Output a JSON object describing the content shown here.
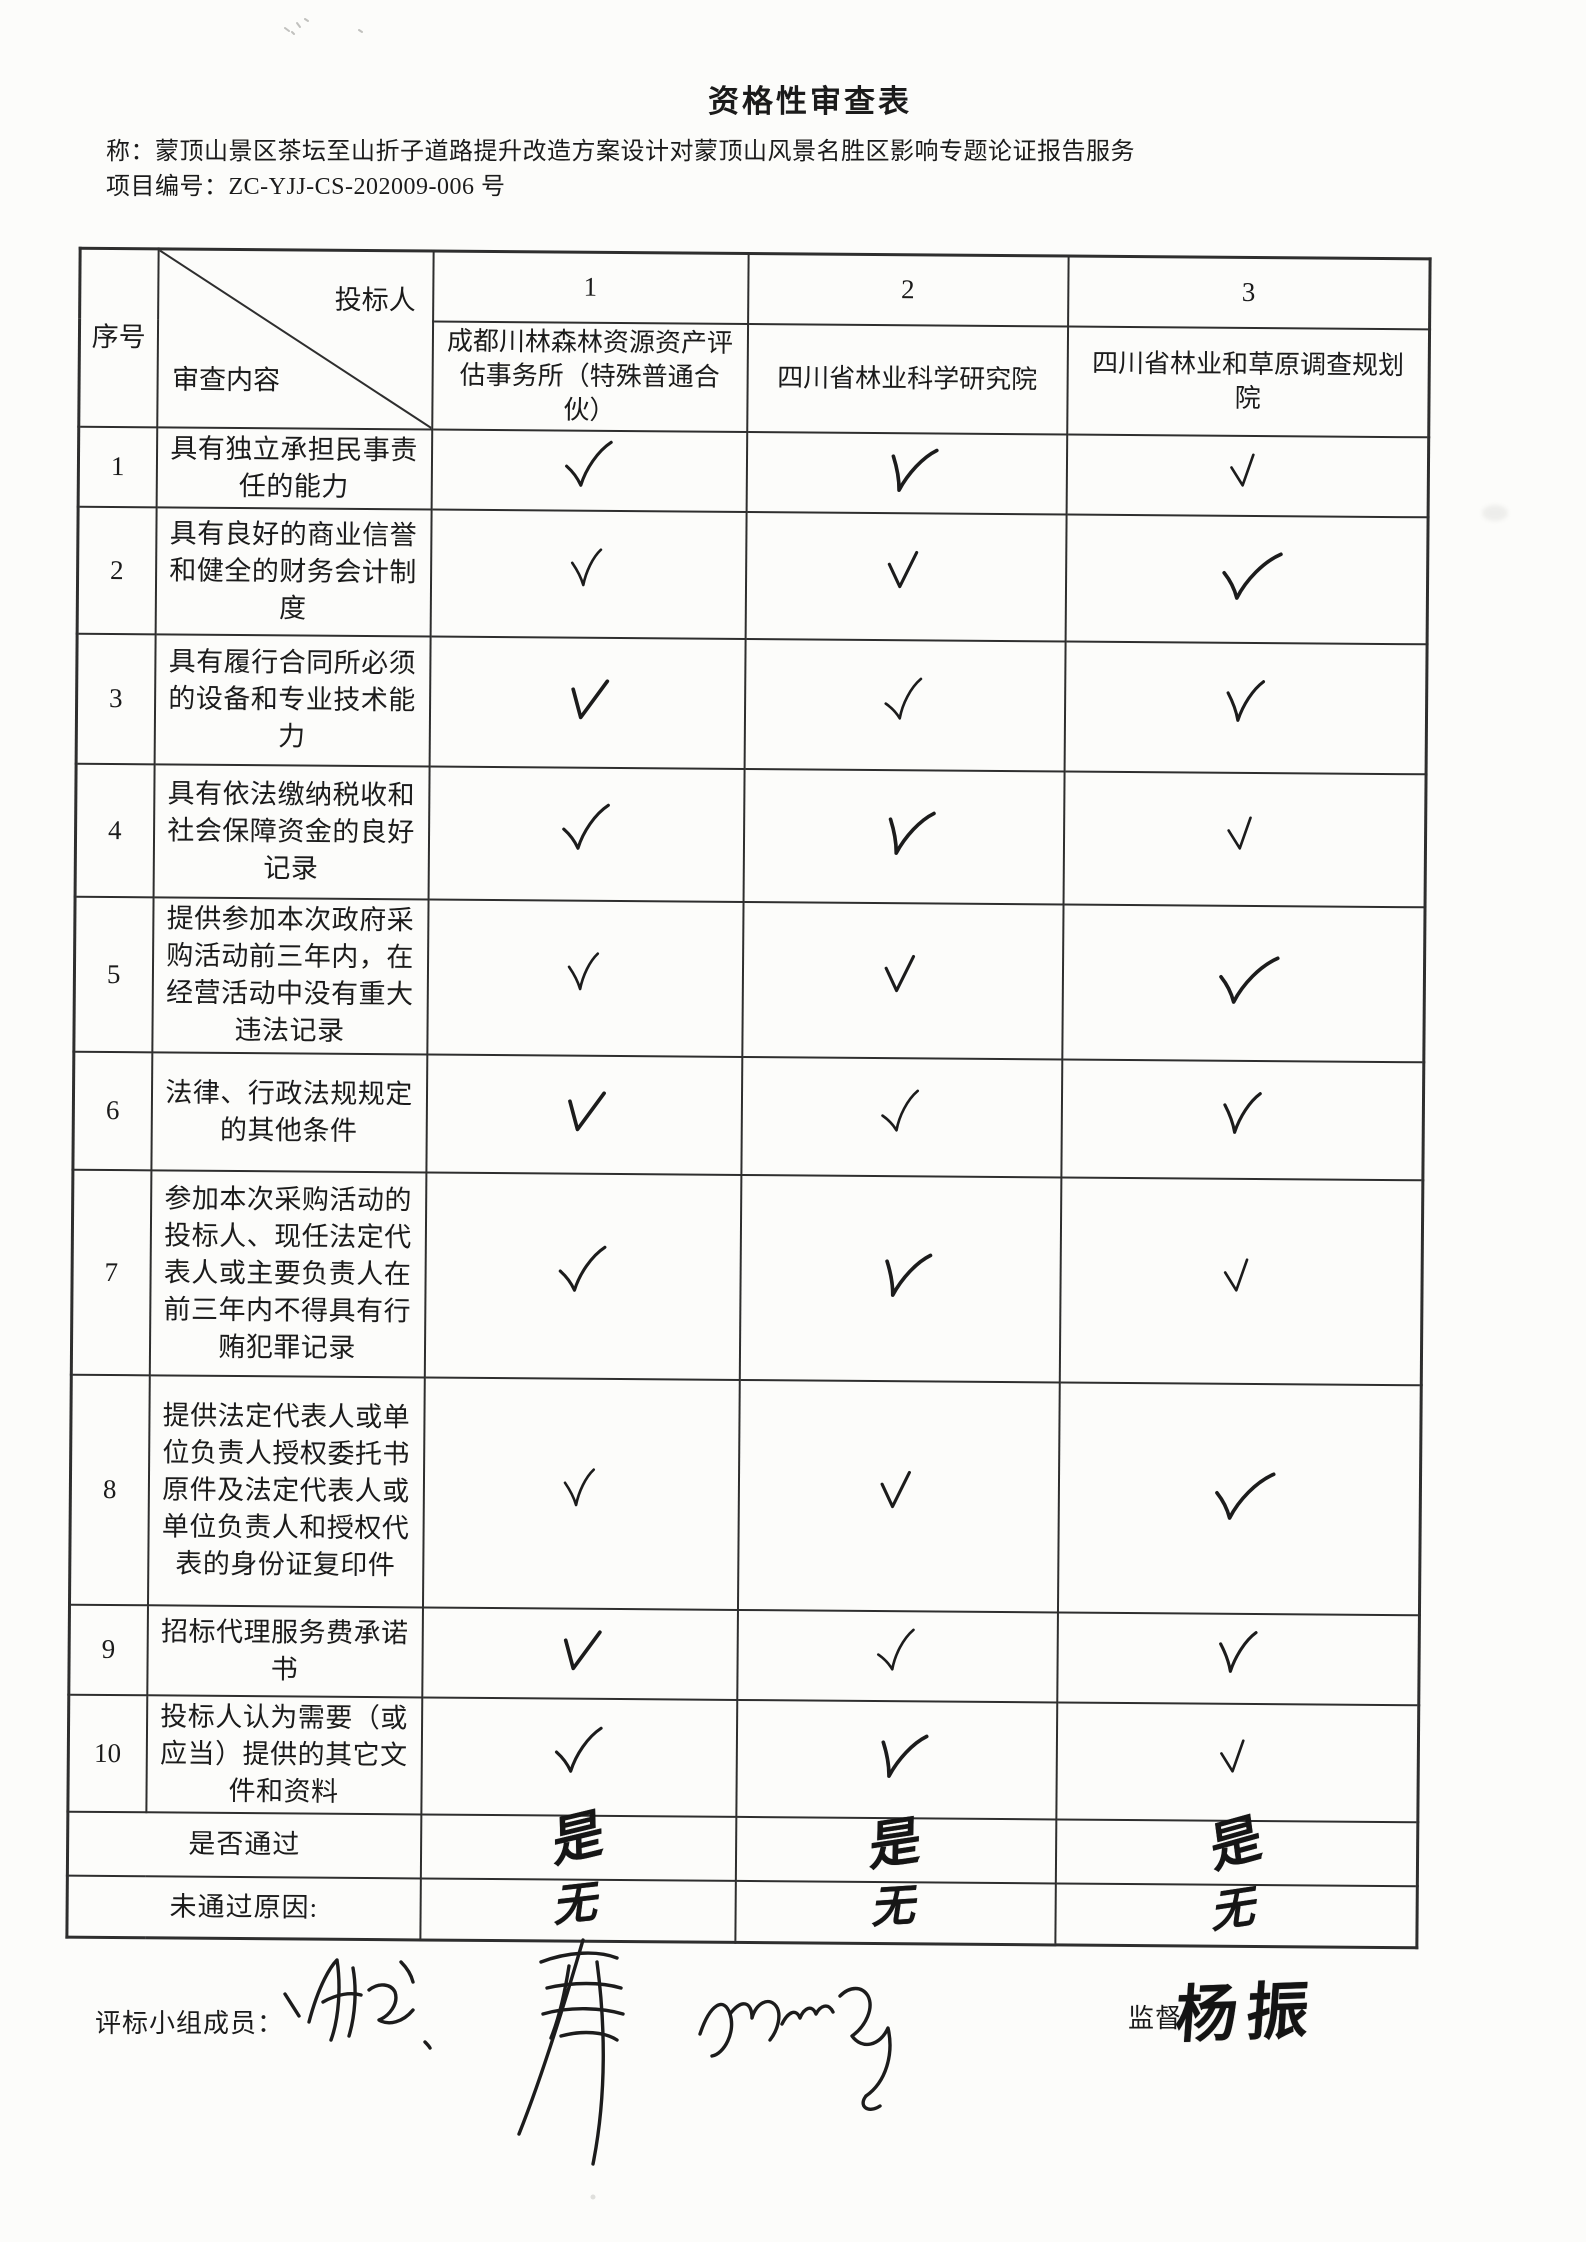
{
  "page": {
    "title": "资格性审查表",
    "name_label": "称：",
    "name_value": "蒙顶山景区茶坛至山折子道路提升改造方案设计对蒙顶山风景名胜区影响专题论证报告服务",
    "project_no_label": "项目编号：",
    "project_no_value": "ZC-YJJ-CS-202009-006 号"
  },
  "table": {
    "seq_header": "序号",
    "corner": {
      "top_right": "投标人",
      "bottom_left": "审查内容"
    },
    "bidders": [
      {
        "no": "1",
        "name": "成都川林森林资源资产评估事务所（特殊普通合伙）"
      },
      {
        "no": "2",
        "name": "四川省林业科学研究院"
      },
      {
        "no": "3",
        "name": "四川省林业和草原调查规划院"
      }
    ],
    "rows": [
      {
        "no": "1",
        "content": "具有独立承担民事责任的能力",
        "checks": [
          "✓",
          "✓",
          "✓"
        ]
      },
      {
        "no": "2",
        "content": "具有良好的商业信誉和健全的财务会计制度",
        "checks": [
          "✓",
          "✓",
          "✓"
        ]
      },
      {
        "no": "3",
        "content": "具有履行合同所必须的设备和专业技术能力",
        "checks": [
          "✓",
          "✓",
          "✓"
        ]
      },
      {
        "no": "4",
        "content": "具有依法缴纳税收和社会保障资金的良好记录",
        "checks": [
          "✓",
          "✓",
          "✓"
        ]
      },
      {
        "no": "5",
        "content": "提供参加本次政府采购活动前三年内，在经营活动中没有重大违法记录",
        "checks": [
          "✓",
          "✓",
          "✓"
        ]
      },
      {
        "no": "6",
        "content": "法律、行政法规规定的其他条件",
        "checks": [
          "✓",
          "✓",
          "✓"
        ]
      },
      {
        "no": "7",
        "content": "参加本次采购活动的投标人、现任法定代表人或主要负责人在前三年内不得具有行贿犯罪记录",
        "checks": [
          "✓",
          "✓",
          "✓"
        ]
      },
      {
        "no": "8",
        "content": "提供法定代表人或单位负责人授权委托书原件及法定代表人或单位负责人和授权代表的身份证复印件",
        "checks": [
          "✓",
          "✓",
          "✓"
        ]
      },
      {
        "no": "9",
        "content": "招标代理服务费承诺书",
        "checks": [
          "✓",
          "✓",
          "✓"
        ]
      },
      {
        "no": "10",
        "content": "投标人认为需要（或应当）提供的其它文件和资料",
        "checks": [
          "✓",
          "✓",
          "✓"
        ]
      }
    ],
    "pass_row": {
      "label": "是否通过",
      "values": [
        "是",
        "是",
        "是"
      ]
    },
    "fail_row": {
      "label": "未通过原因:",
      "values": [
        "无",
        "无",
        "无"
      ]
    }
  },
  "footer": {
    "committee_label": "评标小组成员：",
    "committee_signatures": [
      "signature-scribble-1",
      "signature-scribble-2",
      "signature-scribble-3"
    ],
    "supervisor_label": "监督：",
    "supervisor_signature": "杨振"
  },
  "icons": {
    "check": "✓"
  }
}
